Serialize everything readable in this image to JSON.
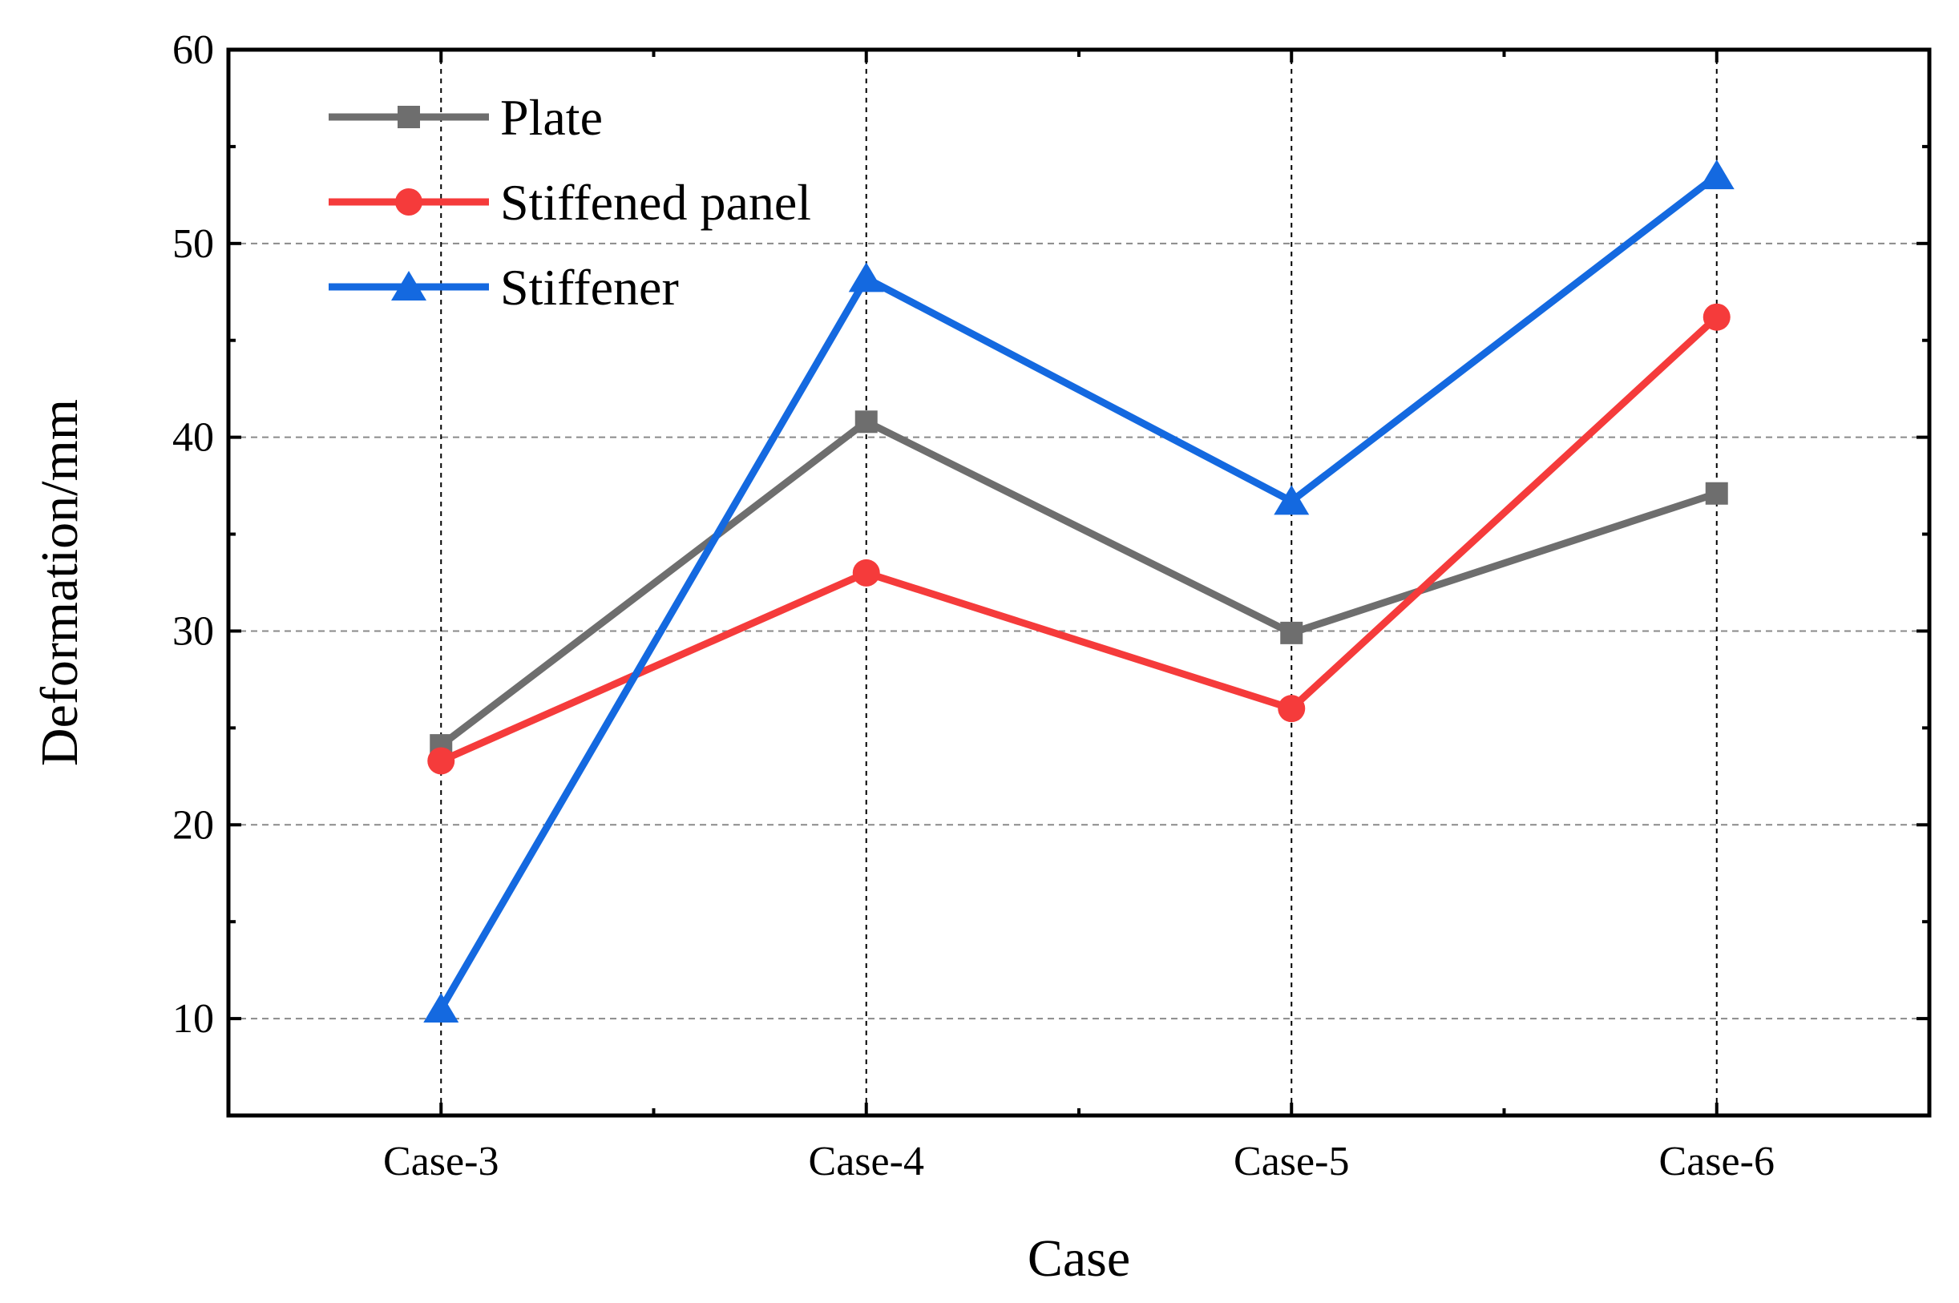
{
  "chart_data": {
    "type": "line",
    "title": "",
    "xlabel": "Case",
    "ylabel": "Deformation/mm",
    "categories": [
      "Case-3",
      "Case-4",
      "Case-5",
      "Case-6"
    ],
    "ylim": [
      5,
      60
    ],
    "yticks": [
      10,
      20,
      30,
      40,
      50,
      60
    ],
    "grid": true,
    "legend_position": "top-left",
    "series": [
      {
        "name": "Plate",
        "marker": "square",
        "color": "#6e6e6e",
        "values": [
          24.1,
          40.8,
          29.9,
          37.1
        ]
      },
      {
        "name": "Stiffened panel",
        "marker": "circle",
        "color": "#f53b3b",
        "values": [
          23.3,
          33.0,
          26.0,
          46.2
        ]
      },
      {
        "name": "Stiffener",
        "marker": "triangle",
        "color": "#1469e0",
        "values": [
          10.5,
          48.2,
          36.7,
          53.5
        ]
      }
    ]
  }
}
